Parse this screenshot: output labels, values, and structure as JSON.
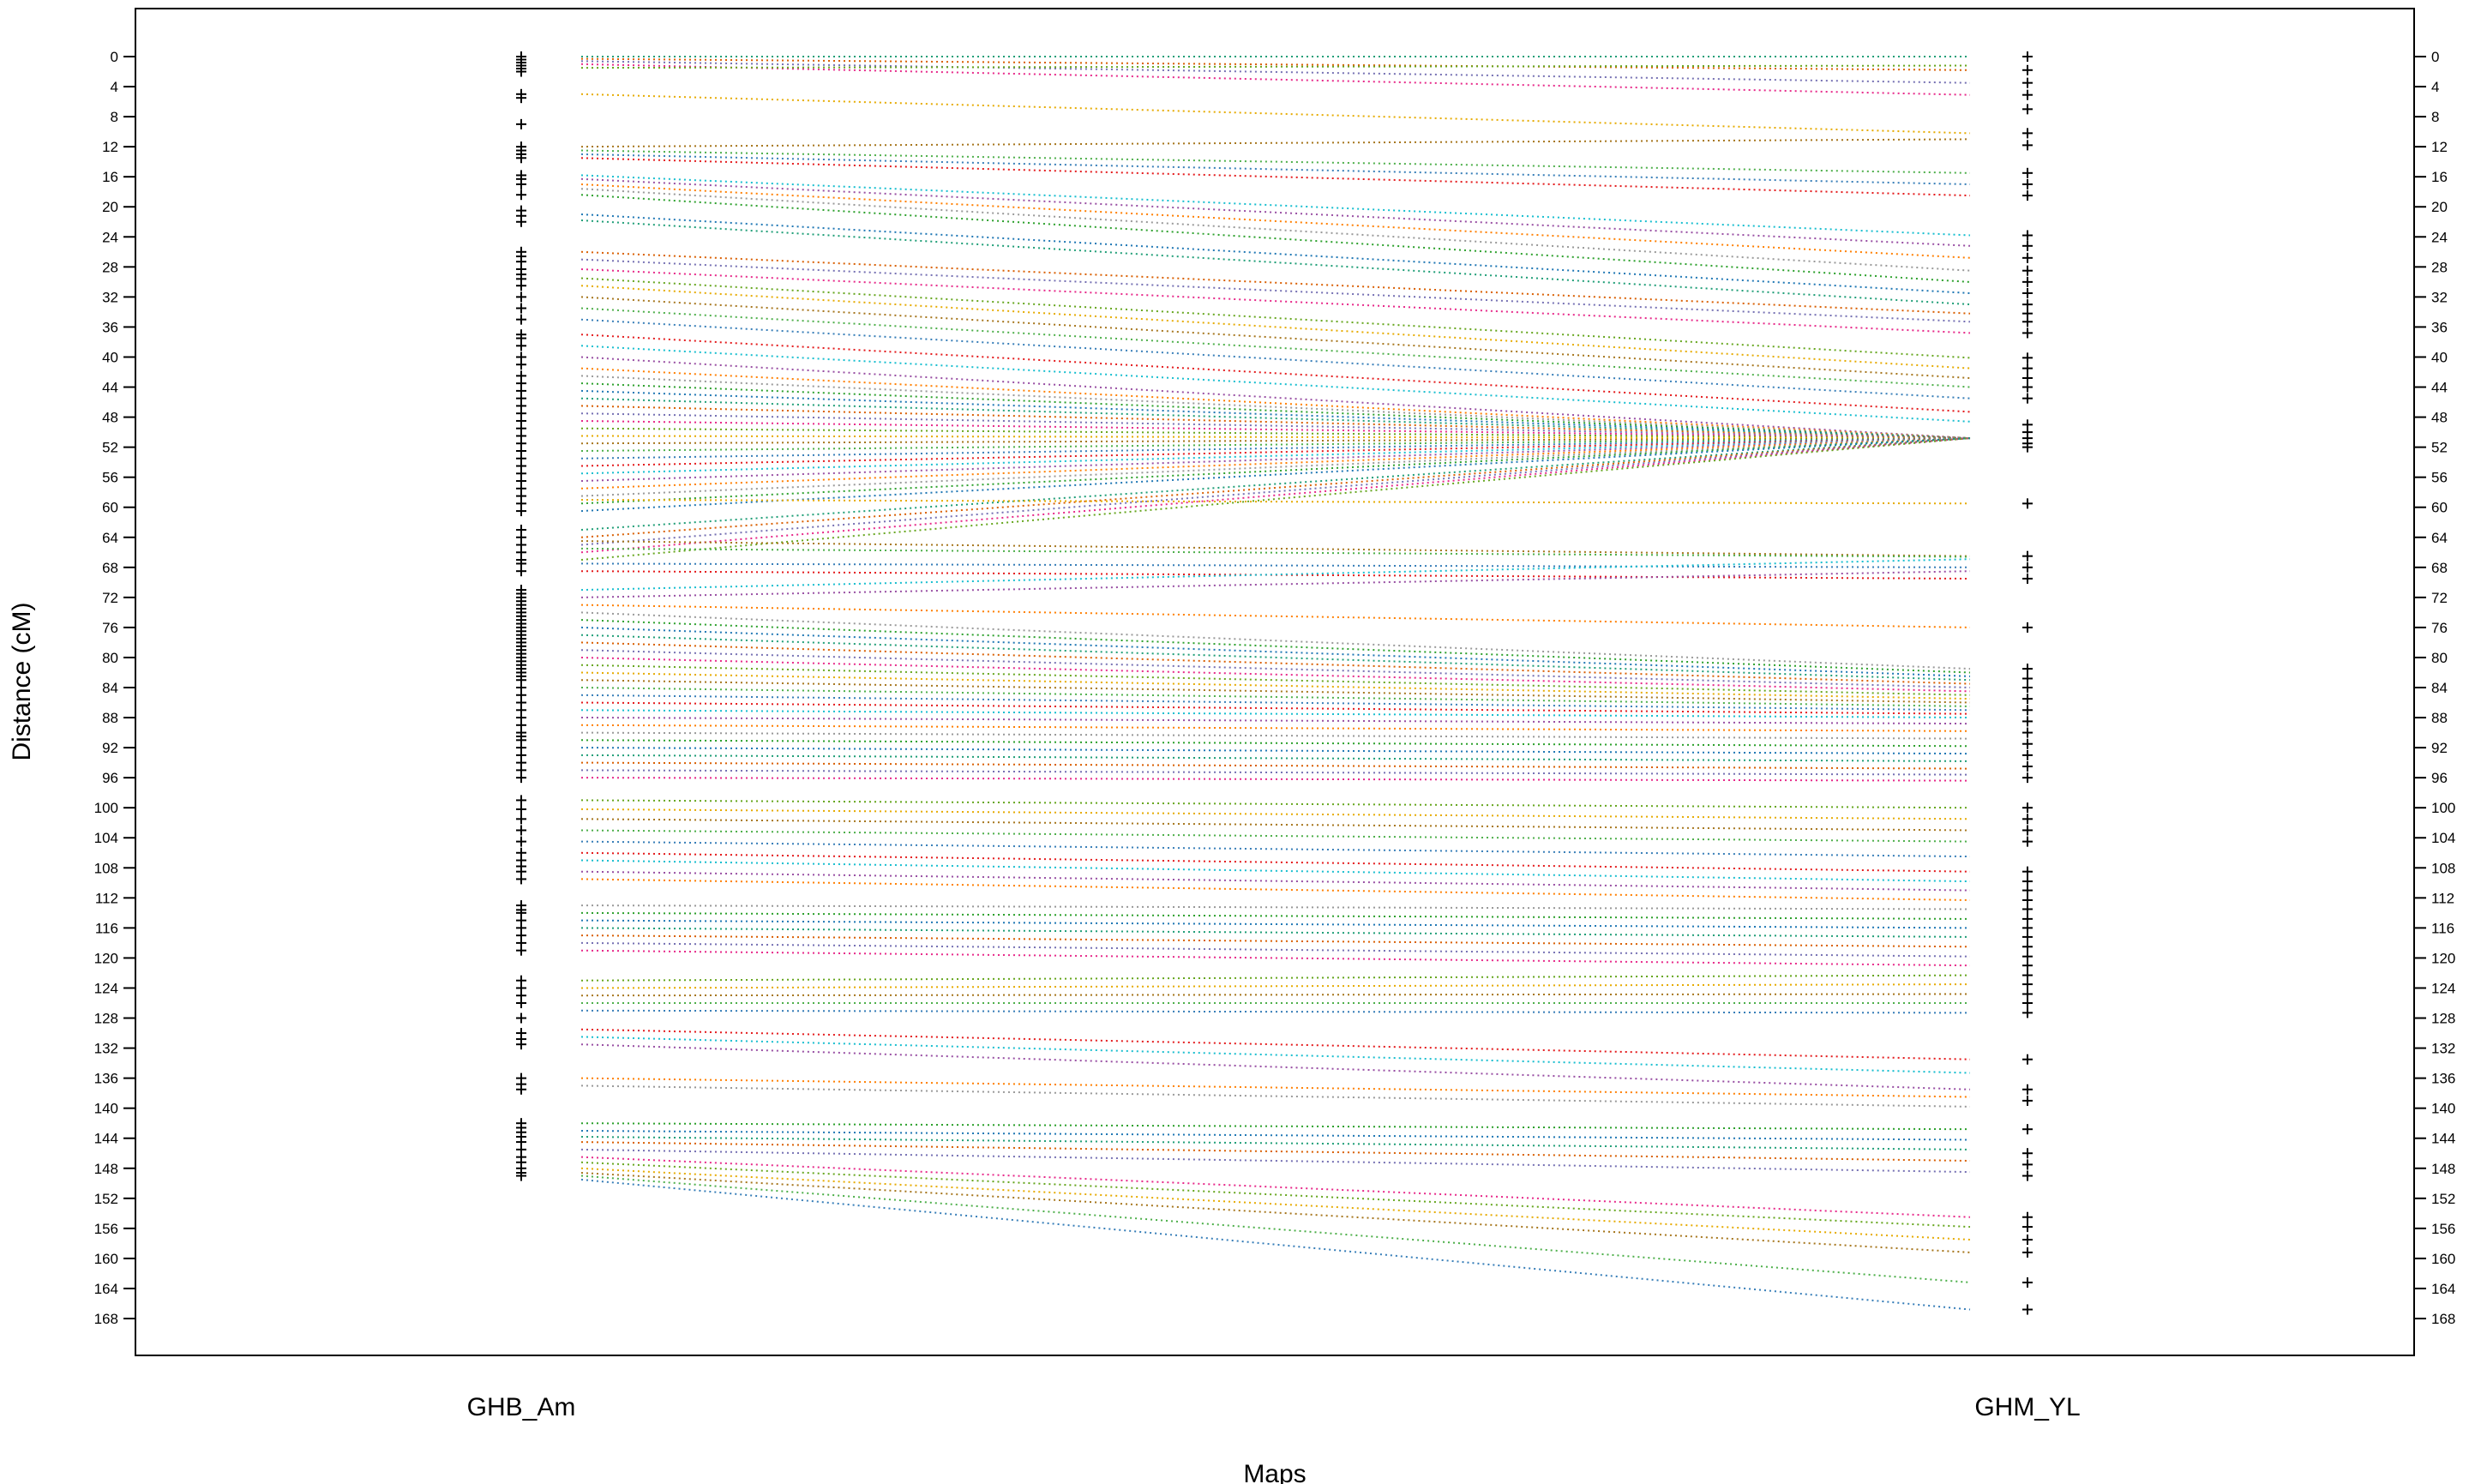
{
  "chart_data": {
    "type": "line",
    "title": "",
    "xlabel": "Maps",
    "ylabel": "Distance (cM)",
    "ylim": [
      0,
      168
    ],
    "y_reversed": true,
    "y_ticks": [
      0,
      4,
      8,
      12,
      16,
      20,
      24,
      28,
      32,
      36,
      40,
      44,
      48,
      52,
      56,
      60,
      64,
      68,
      72,
      76,
      80,
      84,
      88,
      92,
      96,
      100,
      104,
      108,
      112,
      116,
      120,
      124,
      128,
      132,
      136,
      140,
      144,
      148,
      152,
      156,
      160,
      164,
      168
    ],
    "maps": [
      {
        "name": "GHB_Am",
        "side": "left"
      },
      {
        "name": "GHM_YL",
        "side": "right"
      }
    ],
    "grid": false,
    "line_style": "dotted",
    "series_colors": [
      "#1f9e77",
      "#d95f02",
      "#7570b3",
      "#e7298a",
      "#66a61e",
      "#e6ab02",
      "#a6761d",
      "#4daf4a",
      "#377eb8",
      "#e41a1c",
      "#17becf",
      "#984ea3",
      "#ff7f00",
      "#999999",
      "#2ca02c",
      "#1f77b4"
    ],
    "links": [
      [
        0.0,
        0.0
      ],
      [
        0.3,
        1.8
      ],
      [
        0.6,
        3.5
      ],
      [
        1.0,
        5.1
      ],
      [
        1.5,
        1.2
      ],
      [
        5.0,
        10.2
      ],
      [
        12.0,
        11.0
      ],
      [
        12.5,
        15.5
      ],
      [
        13.0,
        17.0
      ],
      [
        13.5,
        18.5
      ],
      [
        15.8,
        23.8
      ],
      [
        16.3,
        25.2
      ],
      [
        17.0,
        26.8
      ],
      [
        17.6,
        28.5
      ],
      [
        18.4,
        30.0
      ],
      [
        21.0,
        31.5
      ],
      [
        21.8,
        33.0
      ],
      [
        26.0,
        34.2
      ],
      [
        27.0,
        35.3
      ],
      [
        28.3,
        36.8
      ],
      [
        29.5,
        40.1
      ],
      [
        30.5,
        41.5
      ],
      [
        32.0,
        42.8
      ],
      [
        33.5,
        44.0
      ],
      [
        35.0,
        45.5
      ],
      [
        37.0,
        47.3
      ],
      [
        38.5,
        48.6
      ],
      [
        40.0,
        50.8
      ],
      [
        41.5,
        50.8
      ],
      [
        42.5,
        50.8
      ],
      [
        43.5,
        50.8
      ],
      [
        44.5,
        50.8
      ],
      [
        45.5,
        50.8
      ],
      [
        46.5,
        50.8
      ],
      [
        47.5,
        50.8
      ],
      [
        48.5,
        50.8
      ],
      [
        49.5,
        50.8
      ],
      [
        50.5,
        50.8
      ],
      [
        51.5,
        50.8
      ],
      [
        52.5,
        50.8
      ],
      [
        53.5,
        50.8
      ],
      [
        54.5,
        50.8
      ],
      [
        55.5,
        50.8
      ],
      [
        56.5,
        50.8
      ],
      [
        57.5,
        50.8
      ],
      [
        58.5,
        50.8
      ],
      [
        59.5,
        50.8
      ],
      [
        60.5,
        50.8
      ],
      [
        63.0,
        50.8
      ],
      [
        64.0,
        50.8
      ],
      [
        65.0,
        50.8
      ],
      [
        66.0,
        50.8
      ],
      [
        67.0,
        50.8
      ],
      [
        59.0,
        59.5
      ],
      [
        64.5,
        66.5
      ],
      [
        65.5,
        66.6
      ],
      [
        67.5,
        68.0
      ],
      [
        68.5,
        69.5
      ],
      [
        71.0,
        66.9
      ],
      [
        72.0,
        68.5
      ],
      [
        73.0,
        76.0
      ],
      [
        74.0,
        81.5
      ],
      [
        75.0,
        82.0
      ],
      [
        76.0,
        82.5
      ],
      [
        77.0,
        83.0
      ],
      [
        78.0,
        83.5
      ],
      [
        79.0,
        84.0
      ],
      [
        80.0,
        84.5
      ],
      [
        81.0,
        85.0
      ],
      [
        82.0,
        85.5
      ],
      [
        83.0,
        86.0
      ],
      [
        84.0,
        86.5
      ],
      [
        85.0,
        87.0
      ],
      [
        86.0,
        87.5
      ],
      [
        87.0,
        88.0
      ],
      [
        88.0,
        88.8
      ],
      [
        89.0,
        89.8
      ],
      [
        90.0,
        90.8
      ],
      [
        91.0,
        91.8
      ],
      [
        92.0,
        92.8
      ],
      [
        93.0,
        93.8
      ],
      [
        94.0,
        94.8
      ],
      [
        95.0,
        95.6
      ],
      [
        96.0,
        96.4
      ],
      [
        99.0,
        100.0
      ],
      [
        100.2,
        101.5
      ],
      [
        101.5,
        103.0
      ],
      [
        103.0,
        104.5
      ],
      [
        104.5,
        106.5
      ],
      [
        106.0,
        108.5
      ],
      [
        107.0,
        109.8
      ],
      [
        108.5,
        111.0
      ],
      [
        109.5,
        112.3
      ],
      [
        113.0,
        113.5
      ],
      [
        114.0,
        114.8
      ],
      [
        115.0,
        116.0
      ],
      [
        116.0,
        117.2
      ],
      [
        117.0,
        118.5
      ],
      [
        118.0,
        119.8
      ],
      [
        119.0,
        121.0
      ],
      [
        123.0,
        122.3
      ],
      [
        124.0,
        123.5
      ],
      [
        125.0,
        124.8
      ],
      [
        126.0,
        126.0
      ],
      [
        127.0,
        127.3
      ],
      [
        129.5,
        133.5
      ],
      [
        130.5,
        135.3
      ],
      [
        131.5,
        137.5
      ],
      [
        136.0,
        138.5
      ],
      [
        137.0,
        139.8
      ],
      [
        142.0,
        142.8
      ],
      [
        143.0,
        144.2
      ],
      [
        143.8,
        145.5
      ],
      [
        144.5,
        147.0
      ],
      [
        145.5,
        148.5
      ],
      [
        146.5,
        154.5
      ],
      [
        147.2,
        155.8
      ],
      [
        148.0,
        157.5
      ],
      [
        148.6,
        159.2
      ],
      [
        149.0,
        163.2
      ],
      [
        149.5,
        166.8
      ]
    ],
    "left_markers": [
      0,
      0.4,
      0.8,
      1.2,
      1.6,
      2.0,
      5.0,
      5.5,
      9.0,
      12.0,
      12.5,
      13.0,
      13.5,
      15.8,
      16.3,
      17.0,
      18.4,
      20.5,
      21.2,
      22.0,
      26.0,
      26.6,
      27.3,
      28.3,
      29.0,
      29.6,
      30.5,
      32.0,
      33.5,
      35.0,
      37.0,
      37.5,
      38.5,
      40.0,
      41.0,
      42.5,
      43.5,
      44.5,
      45.5,
      46.5,
      47.5,
      48.5,
      49.5,
      50.5,
      51.5,
      52.5,
      53.5,
      54.5,
      55.5,
      56.5,
      57.5,
      58.5,
      59.5,
      60.5,
      63.0,
      64.0,
      65.0,
      66.0,
      67.0,
      67.5,
      68.5,
      71.0,
      71.5,
      72.0,
      72.5,
      73.0,
      73.5,
      74.0,
      74.5,
      75.0,
      75.5,
      76.0,
      76.5,
      77.0,
      77.5,
      78.0,
      78.5,
      79.0,
      79.5,
      80.0,
      80.5,
      81.0,
      81.5,
      82.0,
      82.5,
      83.0,
      84.0,
      85.0,
      86.0,
      87.0,
      88.0,
      89.0,
      90.0,
      90.5,
      91.0,
      92.0,
      93.0,
      94.0,
      95.0,
      96.0,
      99.0,
      100.2,
      101.5,
      103.0,
      104.5,
      106.0,
      107.0,
      107.8,
      108.5,
      109.5,
      113.0,
      113.6,
      114.0,
      115.0,
      116.0,
      117.0,
      118.0,
      119.0,
      123.0,
      124.0,
      125.0,
      126.0,
      128.0,
      130.0,
      130.8,
      131.5,
      136.0,
      136.8,
      137.5,
      142.0,
      142.6,
      143.2,
      143.8,
      144.5,
      145.5,
      146.5,
      147.2,
      148.0,
      148.6,
      149.0
    ],
    "right_markers": [
      0,
      1.8,
      3.5,
      5.1,
      7.0,
      10.2,
      11.8,
      15.5,
      17.0,
      18.5,
      23.8,
      25.2,
      26.8,
      28.5,
      30.0,
      31.5,
      33.0,
      34.2,
      35.3,
      36.8,
      40.1,
      41.5,
      42.8,
      44.0,
      45.5,
      49.0,
      50.0,
      50.8,
      51.5,
      52.0,
      59.5,
      66.5,
      68.0,
      69.5,
      76.0,
      81.5,
      82.8,
      84.0,
      85.5,
      87.0,
      88.5,
      90.0,
      91.5,
      93.0,
      94.5,
      96.0,
      100.0,
      101.5,
      103.0,
      104.5,
      108.5,
      109.8,
      111.0,
      112.3,
      113.5,
      114.8,
      116.0,
      117.2,
      118.5,
      119.8,
      121.0,
      122.3,
      123.5,
      124.8,
      126.0,
      127.3,
      133.5,
      137.5,
      139.0,
      142.8,
      146.0,
      147.5,
      149.0,
      154.5,
      155.8,
      157.5,
      159.2,
      163.2,
      166.8
    ]
  }
}
